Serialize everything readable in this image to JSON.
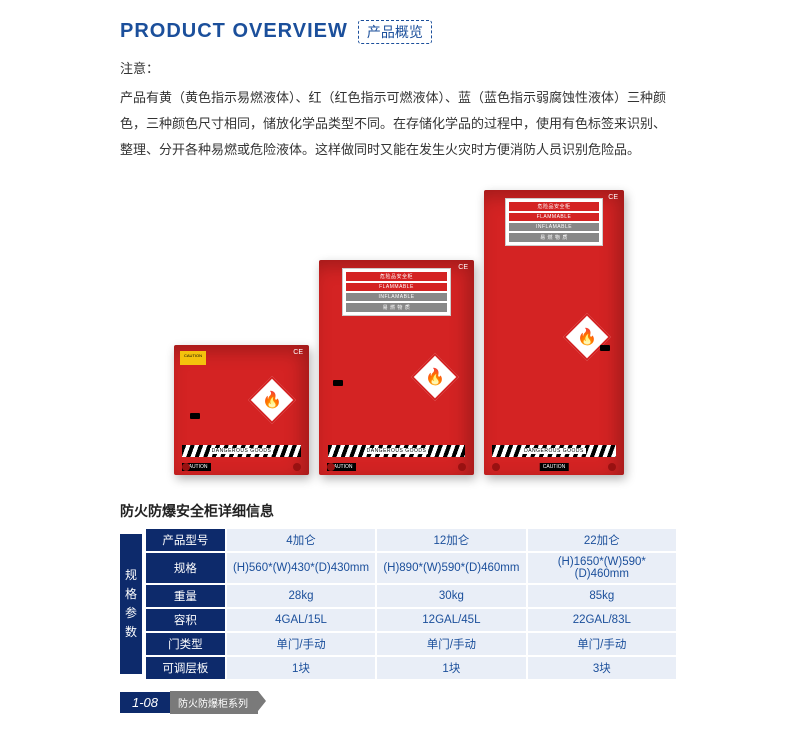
{
  "header": {
    "title_en": "PRODUCT OVERVIEW",
    "title_cn": "产品概览"
  },
  "notice": {
    "label": "注意：",
    "body": "产品有黄（黄色指示易燃液体）、红（红色指示可燃液体）、蓝（蓝色指示弱腐蚀性液体）三种颜色，三种颜色尺寸相同，储放化学品类型不同。在存储化学品的过程中，使用有色标签来识别、整理、分开各种易燃或危险液体。这样做同时又能在发生火灾时方便消防人员识别危险品。"
  },
  "image": {
    "label_top_cn": "危险品安全柜",
    "flammable": "FLAMMABLE",
    "inflamable": "INFLAMABLE",
    "yi_ran": "易 燃 物 质",
    "dangerous": "DANGEROUS GOODS",
    "caution": "CAUTION",
    "ce": "CE",
    "keran": "可燃液体",
    "cabinet_color": "#d42323"
  },
  "spec": {
    "subtitle": "防火防爆安全柜详细信息",
    "sidebar": "规格参数",
    "rows": [
      {
        "h": "产品型号",
        "c1": "4加仑",
        "c2": "12加仑",
        "c3": "22加仑"
      },
      {
        "h": "规格",
        "c1": "(H)560*(W)430*(D)430mm",
        "c2": "(H)890*(W)590*(D)460mm",
        "c3": "(H)1650*(W)590*(D)460mm"
      },
      {
        "h": "重量",
        "c1": "28kg",
        "c2": "30kg",
        "c3": "85kg"
      },
      {
        "h": "容积",
        "c1": "4GAL/15L",
        "c2": "12GAL/45L",
        "c3": "22GAL/83L"
      },
      {
        "h": "门类型",
        "c1": "单门/手动",
        "c2": "单门/手动",
        "c3": "单门/手动"
      },
      {
        "h": "可调层板",
        "c1": "1块",
        "c2": "1块",
        "c3": "3块"
      }
    ]
  },
  "footer": {
    "page": "1-08",
    "series": "防火防爆柜系列"
  }
}
